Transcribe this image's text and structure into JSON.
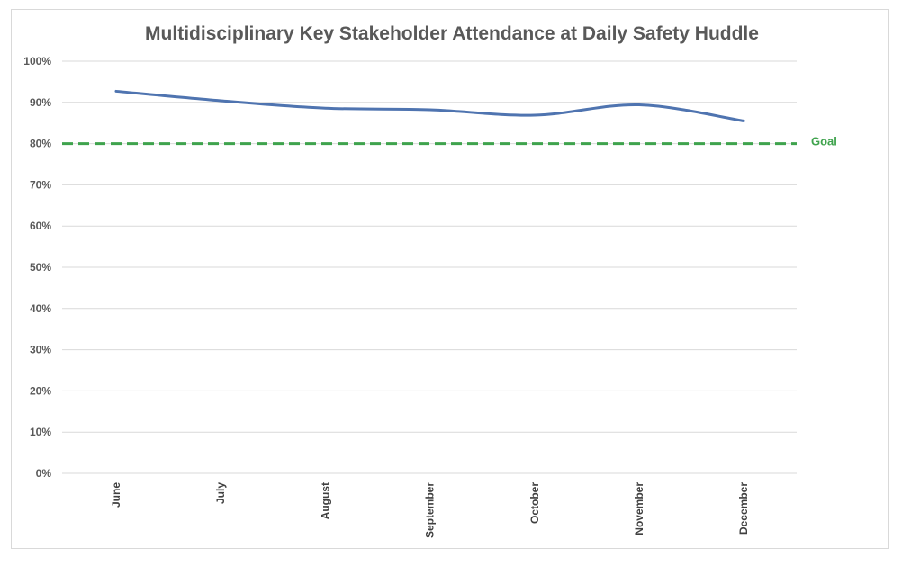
{
  "chart_data": {
    "type": "line",
    "title": "Multidisciplinary Key Stakeholder Attendance at Daily Safety Huddle",
    "xlabel": "",
    "ylabel": "",
    "ylim": [
      0,
      100
    ],
    "ytick_labels": [
      "0%",
      "10%",
      "20%",
      "30%",
      "40%",
      "50%",
      "60%",
      "70%",
      "80%",
      "90%",
      "100%"
    ],
    "categories": [
      "June",
      "July",
      "August",
      "September",
      "October",
      "November",
      "December"
    ],
    "series": [
      {
        "values": [
          92.7,
          90.4,
          88.6,
          88.2,
          86.9,
          89.4,
          85.5
        ],
        "color": "#4f74b0"
      }
    ],
    "goal": {
      "label": "Goal",
      "value": 80,
      "color": "#3fa34d"
    },
    "grid": true,
    "legend": "none"
  }
}
